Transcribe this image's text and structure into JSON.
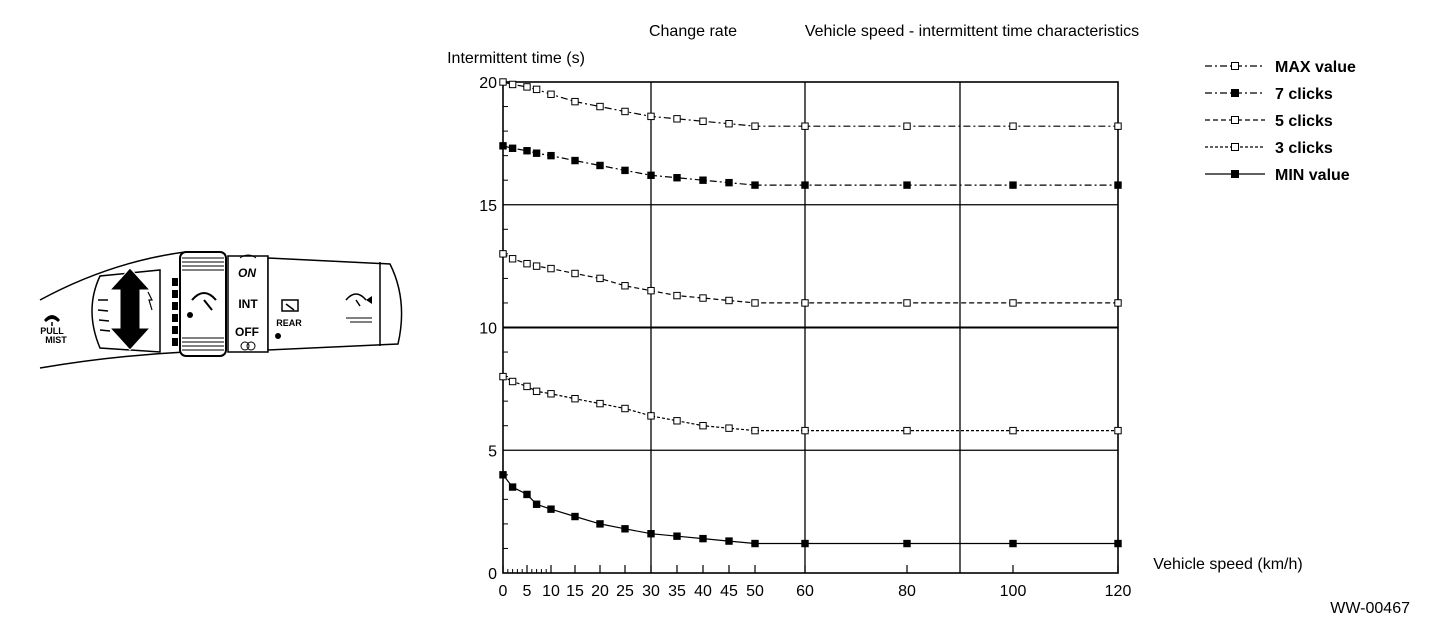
{
  "figure_code": "WW-00467",
  "switch_labels": {
    "pull": "PULL",
    "mist": "MIST",
    "on": "ON",
    "int": "INT",
    "off": "OFF",
    "rear": "REAR"
  },
  "chart_data": {
    "type": "line",
    "title_prefix": "Change rate",
    "title": "Vehicle speed - intermittent time characteristics",
    "ylabel": "Intermittent time (s)",
    "xlabel": "Vehicle speed (km/h)",
    "x_scale": "non-uniform (tick labels placed as printed)",
    "x_ticks": [
      0,
      5,
      10,
      15,
      20,
      25,
      30,
      35,
      40,
      45,
      50,
      60,
      80,
      100,
      120
    ],
    "x_tick_labels": [
      "0",
      "5",
      "10",
      "15",
      "20",
      "25",
      "30",
      "35",
      "40",
      "45",
      "50",
      "60",
      "80",
      "100",
      "120"
    ],
    "y_ticks": [
      0,
      5,
      10,
      15,
      20
    ],
    "y_tick_labels": [
      "0",
      "5",
      "10",
      "15",
      "20"
    ],
    "ylim": [
      0,
      20
    ],
    "xlim": [
      0,
      120
    ],
    "grid": true,
    "legend_position": "top-right",
    "series": [
      {
        "name": "MAX value",
        "style": "dash-dot",
        "marker": "open-square",
        "points": [
          [
            0,
            20
          ],
          [
            2,
            19.9
          ],
          [
            5,
            19.8
          ],
          [
            7,
            19.7
          ],
          [
            10,
            19.5
          ],
          [
            15,
            19.2
          ],
          [
            20,
            19.0
          ],
          [
            25,
            18.8
          ],
          [
            30,
            18.6
          ],
          [
            35,
            18.5
          ],
          [
            40,
            18.4
          ],
          [
            45,
            18.3
          ],
          [
            50,
            18.2
          ],
          [
            60,
            18.2
          ],
          [
            80,
            18.2
          ],
          [
            100,
            18.2
          ],
          [
            120,
            18.2
          ]
        ]
      },
      {
        "name": "7 clicks",
        "style": "dash-dot",
        "marker": "filled-square",
        "points": [
          [
            0,
            17.4
          ],
          [
            2,
            17.3
          ],
          [
            5,
            17.2
          ],
          [
            7,
            17.1
          ],
          [
            10,
            17.0
          ],
          [
            15,
            16.8
          ],
          [
            20,
            16.6
          ],
          [
            25,
            16.4
          ],
          [
            30,
            16.2
          ],
          [
            35,
            16.1
          ],
          [
            40,
            16.0
          ],
          [
            45,
            15.9
          ],
          [
            50,
            15.8
          ],
          [
            60,
            15.8
          ],
          [
            80,
            15.8
          ],
          [
            100,
            15.8
          ],
          [
            120,
            15.8
          ]
        ]
      },
      {
        "name": "5 clicks",
        "style": "dashed",
        "marker": "open-square",
        "points": [
          [
            0,
            13.0
          ],
          [
            2,
            12.8
          ],
          [
            5,
            12.6
          ],
          [
            7,
            12.5
          ],
          [
            10,
            12.4
          ],
          [
            15,
            12.2
          ],
          [
            20,
            12.0
          ],
          [
            25,
            11.7
          ],
          [
            30,
            11.5
          ],
          [
            35,
            11.3
          ],
          [
            40,
            11.2
          ],
          [
            45,
            11.1
          ],
          [
            50,
            11.0
          ],
          [
            60,
            11.0
          ],
          [
            80,
            11.0
          ],
          [
            100,
            11.0
          ],
          [
            120,
            11.0
          ]
        ]
      },
      {
        "name": "3 clicks",
        "style": "dotted",
        "marker": "open-square",
        "points": [
          [
            0,
            8.0
          ],
          [
            2,
            7.8
          ],
          [
            5,
            7.6
          ],
          [
            7,
            7.4
          ],
          [
            10,
            7.3
          ],
          [
            15,
            7.1
          ],
          [
            20,
            6.9
          ],
          [
            25,
            6.7
          ],
          [
            30,
            6.4
          ],
          [
            35,
            6.2
          ],
          [
            40,
            6.0
          ],
          [
            45,
            5.9
          ],
          [
            50,
            5.8
          ],
          [
            60,
            5.8
          ],
          [
            80,
            5.8
          ],
          [
            100,
            5.8
          ],
          [
            120,
            5.8
          ]
        ]
      },
      {
        "name": "MIN value",
        "style": "solid",
        "marker": "filled-square",
        "points": [
          [
            0,
            4.0
          ],
          [
            2,
            3.5
          ],
          [
            5,
            3.2
          ],
          [
            7,
            2.8
          ],
          [
            10,
            2.6
          ],
          [
            15,
            2.3
          ],
          [
            20,
            2.0
          ],
          [
            25,
            1.8
          ],
          [
            30,
            1.6
          ],
          [
            35,
            1.5
          ],
          [
            40,
            1.4
          ],
          [
            45,
            1.3
          ],
          [
            50,
            1.2
          ],
          [
            60,
            1.2
          ],
          [
            80,
            1.2
          ],
          [
            100,
            1.2
          ],
          [
            120,
            1.2
          ]
        ]
      }
    ]
  }
}
